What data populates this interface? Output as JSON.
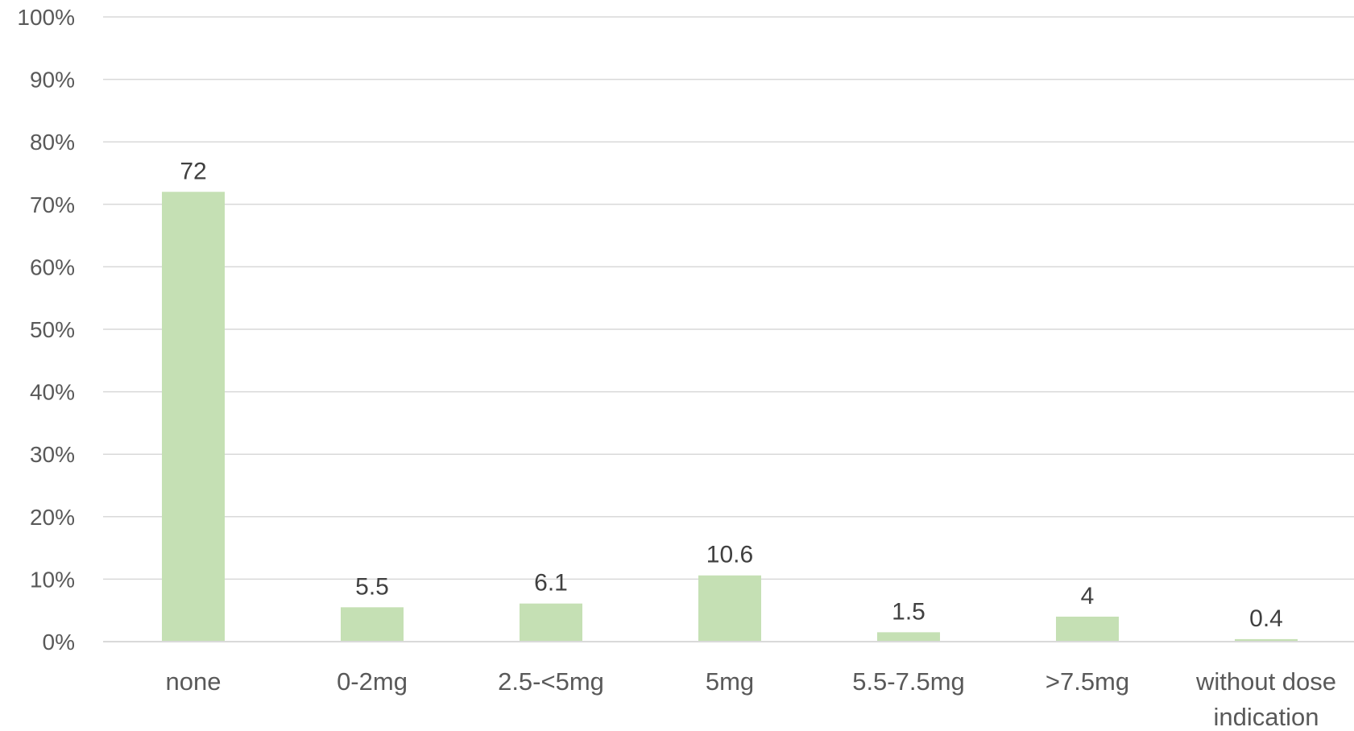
{
  "chart_data": {
    "type": "bar",
    "title": "",
    "xlabel": "",
    "ylabel": "",
    "categories": [
      "none",
      "0-2mg",
      "2.5-<5mg",
      "5mg",
      "5.5-7.5mg",
      ">7.5mg",
      "without dose indication"
    ],
    "category_lines": [
      [
        "none"
      ],
      [
        "0-2mg"
      ],
      [
        "2.5-<5mg"
      ],
      [
        "5mg"
      ],
      [
        "5.5-7.5mg"
      ],
      [
        ">7.5mg"
      ],
      [
        "without dose",
        "indication"
      ]
    ],
    "values": [
      72,
      5.5,
      6.1,
      10.6,
      1.5,
      4,
      0.4
    ],
    "data_labels": [
      "72",
      "5.5",
      "6.1",
      "10.6",
      "1.5",
      "4",
      "0.4"
    ],
    "ylim": [
      0,
      100
    ],
    "yticks": [
      0,
      10,
      20,
      30,
      40,
      50,
      60,
      70,
      80,
      90,
      100
    ],
    "ytick_labels": [
      "0%",
      "10%",
      "20%",
      "30%",
      "40%",
      "50%",
      "60%",
      "70%",
      "80%",
      "90%",
      "100%"
    ],
    "bar_color": "#c5e0b4",
    "grid": true,
    "legend": "none"
  }
}
